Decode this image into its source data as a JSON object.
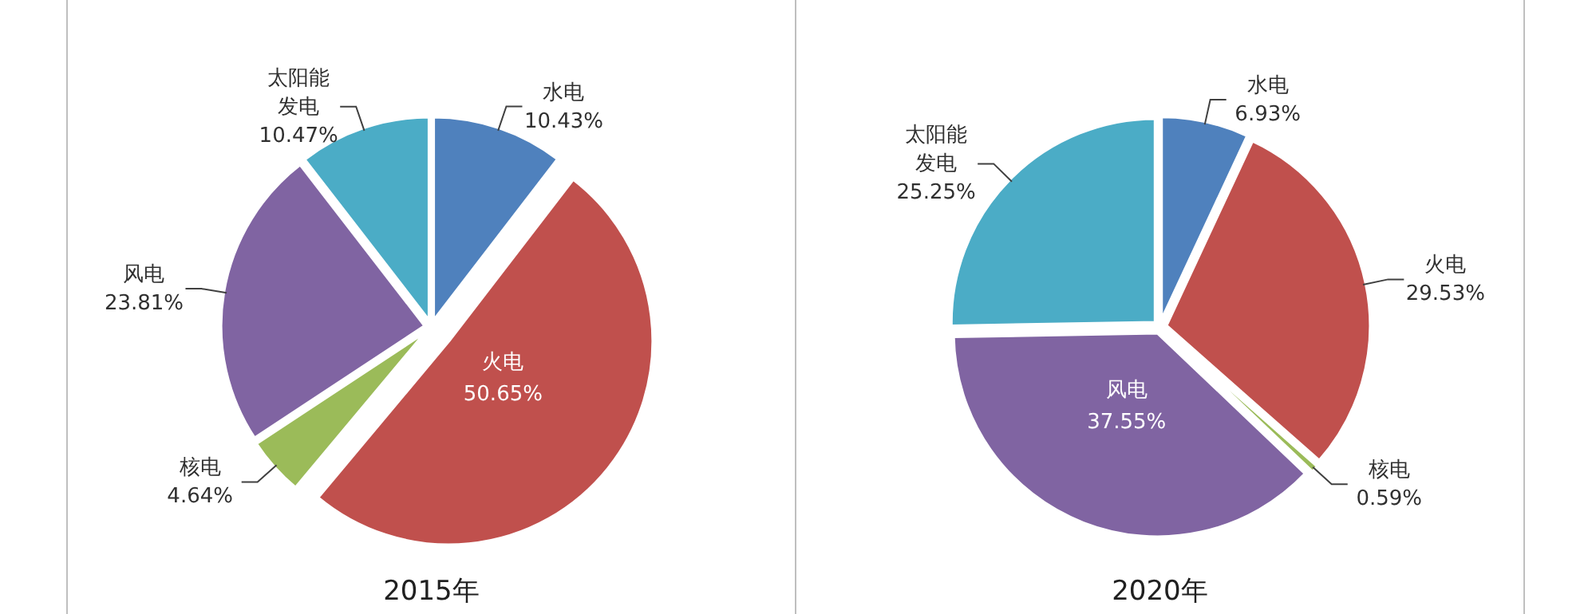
{
  "chart_data": [
    {
      "type": "pie",
      "title": "2015年",
      "categories": [
        "水电",
        "火电",
        "核电",
        "风电",
        "太阳能发电"
      ],
      "values": [
        10.43,
        50.65,
        4.64,
        23.81,
        10.47
      ],
      "value_labels": [
        "10.43%",
        "50.65%",
        "4.64%",
        "23.81%",
        "10.47%"
      ],
      "colors": [
        "#4f81bd",
        "#c0504d",
        "#9bbb59",
        "#8064a2",
        "#4bacc6"
      ]
    },
    {
      "type": "pie",
      "title": "2020年",
      "categories": [
        "水电",
        "火电",
        "核电",
        "风电",
        "太阳能发电"
      ],
      "values": [
        6.93,
        29.53,
        0.59,
        37.55,
        25.25
      ],
      "value_labels": [
        "6.93%",
        "29.53%",
        "0.59%",
        "37.55%",
        "25.25%"
      ],
      "colors": [
        "#4f81bd",
        "#c0504d",
        "#9bbb59",
        "#8064a2",
        "#4bacc6"
      ]
    }
  ]
}
